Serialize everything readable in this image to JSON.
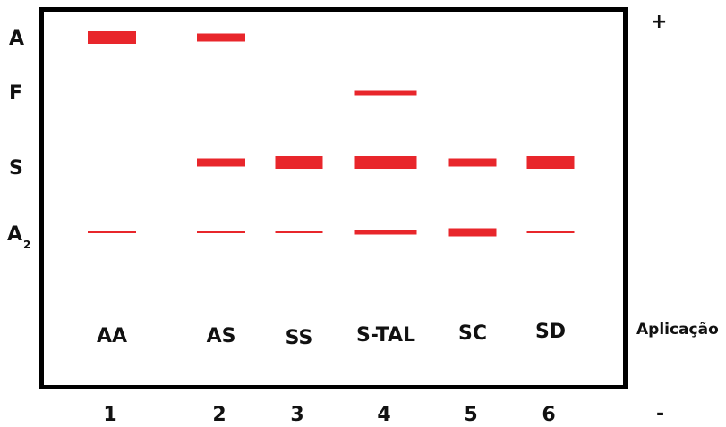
{
  "colors": {
    "band": "#e8262b",
    "frame": "#000000",
    "text": "#111111"
  },
  "polarity": {
    "positive": "+",
    "negative": "-"
  },
  "row_labels": [
    {
      "id": "A",
      "text": "A",
      "sub": ""
    },
    {
      "id": "F",
      "text": "F",
      "sub": ""
    },
    {
      "id": "S",
      "text": "S",
      "sub": ""
    },
    {
      "id": "A2",
      "text": "A",
      "sub": "2"
    }
  ],
  "application_label": "Aplicação",
  "lanes": [
    {
      "number": "1",
      "genotype": "AA",
      "bands": [
        {
          "row": "A",
          "intensity": "strong"
        },
        {
          "row": "A2",
          "intensity": "trace"
        }
      ]
    },
    {
      "number": "2",
      "genotype": "AS",
      "bands": [
        {
          "row": "A",
          "intensity": "medium"
        },
        {
          "row": "S",
          "intensity": "medium"
        },
        {
          "row": "A2",
          "intensity": "trace"
        }
      ]
    },
    {
      "number": "3",
      "genotype": "SS",
      "bands": [
        {
          "row": "S",
          "intensity": "strong"
        },
        {
          "row": "A2",
          "intensity": "trace"
        }
      ]
    },
    {
      "number": "4",
      "genotype": "S-TAL",
      "bands": [
        {
          "row": "F",
          "intensity": "faint"
        },
        {
          "row": "S",
          "intensity": "strong"
        },
        {
          "row": "A2",
          "intensity": "faint"
        }
      ]
    },
    {
      "number": "5",
      "genotype": "SC",
      "bands": [
        {
          "row": "S",
          "intensity": "medium"
        },
        {
          "row": "A2",
          "intensity": "medium"
        }
      ]
    },
    {
      "number": "6",
      "genotype": "SD",
      "bands": [
        {
          "row": "S",
          "intensity": "strong"
        },
        {
          "row": "A2",
          "intensity": "trace"
        }
      ]
    }
  ]
}
